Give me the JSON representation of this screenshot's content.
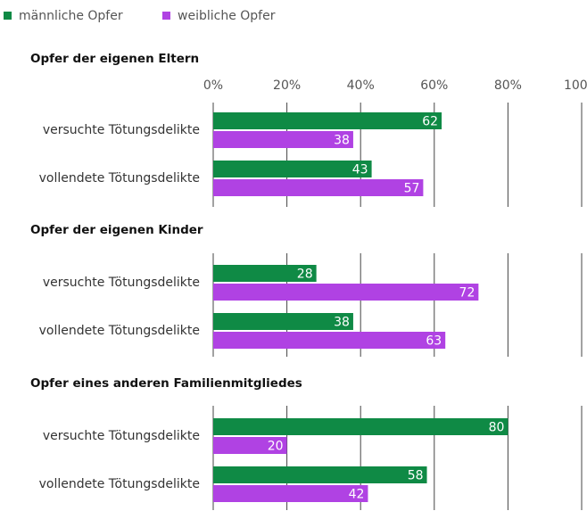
{
  "legend": [
    {
      "name": "männliche Opfer",
      "color": "#0f8a45"
    },
    {
      "name": "weibliche Opfer",
      "color": "#b042e3"
    }
  ],
  "axis": {
    "xlim": [
      0,
      100
    ],
    "xticks": [
      {
        "value": 0,
        "label": "0%"
      },
      {
        "value": 20,
        "label": "20%"
      },
      {
        "value": 40,
        "label": "40%"
      },
      {
        "value": 60,
        "label": "60%"
      },
      {
        "value": 80,
        "label": "80%"
      },
      {
        "value": 100,
        "label": "100%"
      }
    ],
    "grid": true
  },
  "chart_data": [
    {
      "type": "bar",
      "orientation": "horizontal",
      "title": "Opfer der eigenen Eltern",
      "categories": [
        "versuchte Tötungsdelikte",
        "vollendete Tötungsdelikte"
      ],
      "series": [
        {
          "values": [
            62,
            43
          ]
        },
        {
          "values": [
            38,
            57
          ]
        }
      ]
    },
    {
      "type": "bar",
      "orientation": "horizontal",
      "title": "Opfer der eigenen Kinder",
      "categories": [
        "versuchte Tötungsdelikte",
        "vollendete Tötungsdelikte"
      ],
      "series": [
        {
          "values": [
            28,
            38
          ]
        },
        {
          "values": [
            72,
            63
          ]
        }
      ]
    },
    {
      "type": "bar",
      "orientation": "horizontal",
      "title": "Opfer eines anderen Familienmitgliedes",
      "categories": [
        "versuchte Tötungsdelikte",
        "vollendete Tötungsdelikte"
      ],
      "series": [
        {
          "values": [
            80,
            58
          ]
        },
        {
          "values": [
            20,
            42
          ]
        }
      ]
    }
  ]
}
